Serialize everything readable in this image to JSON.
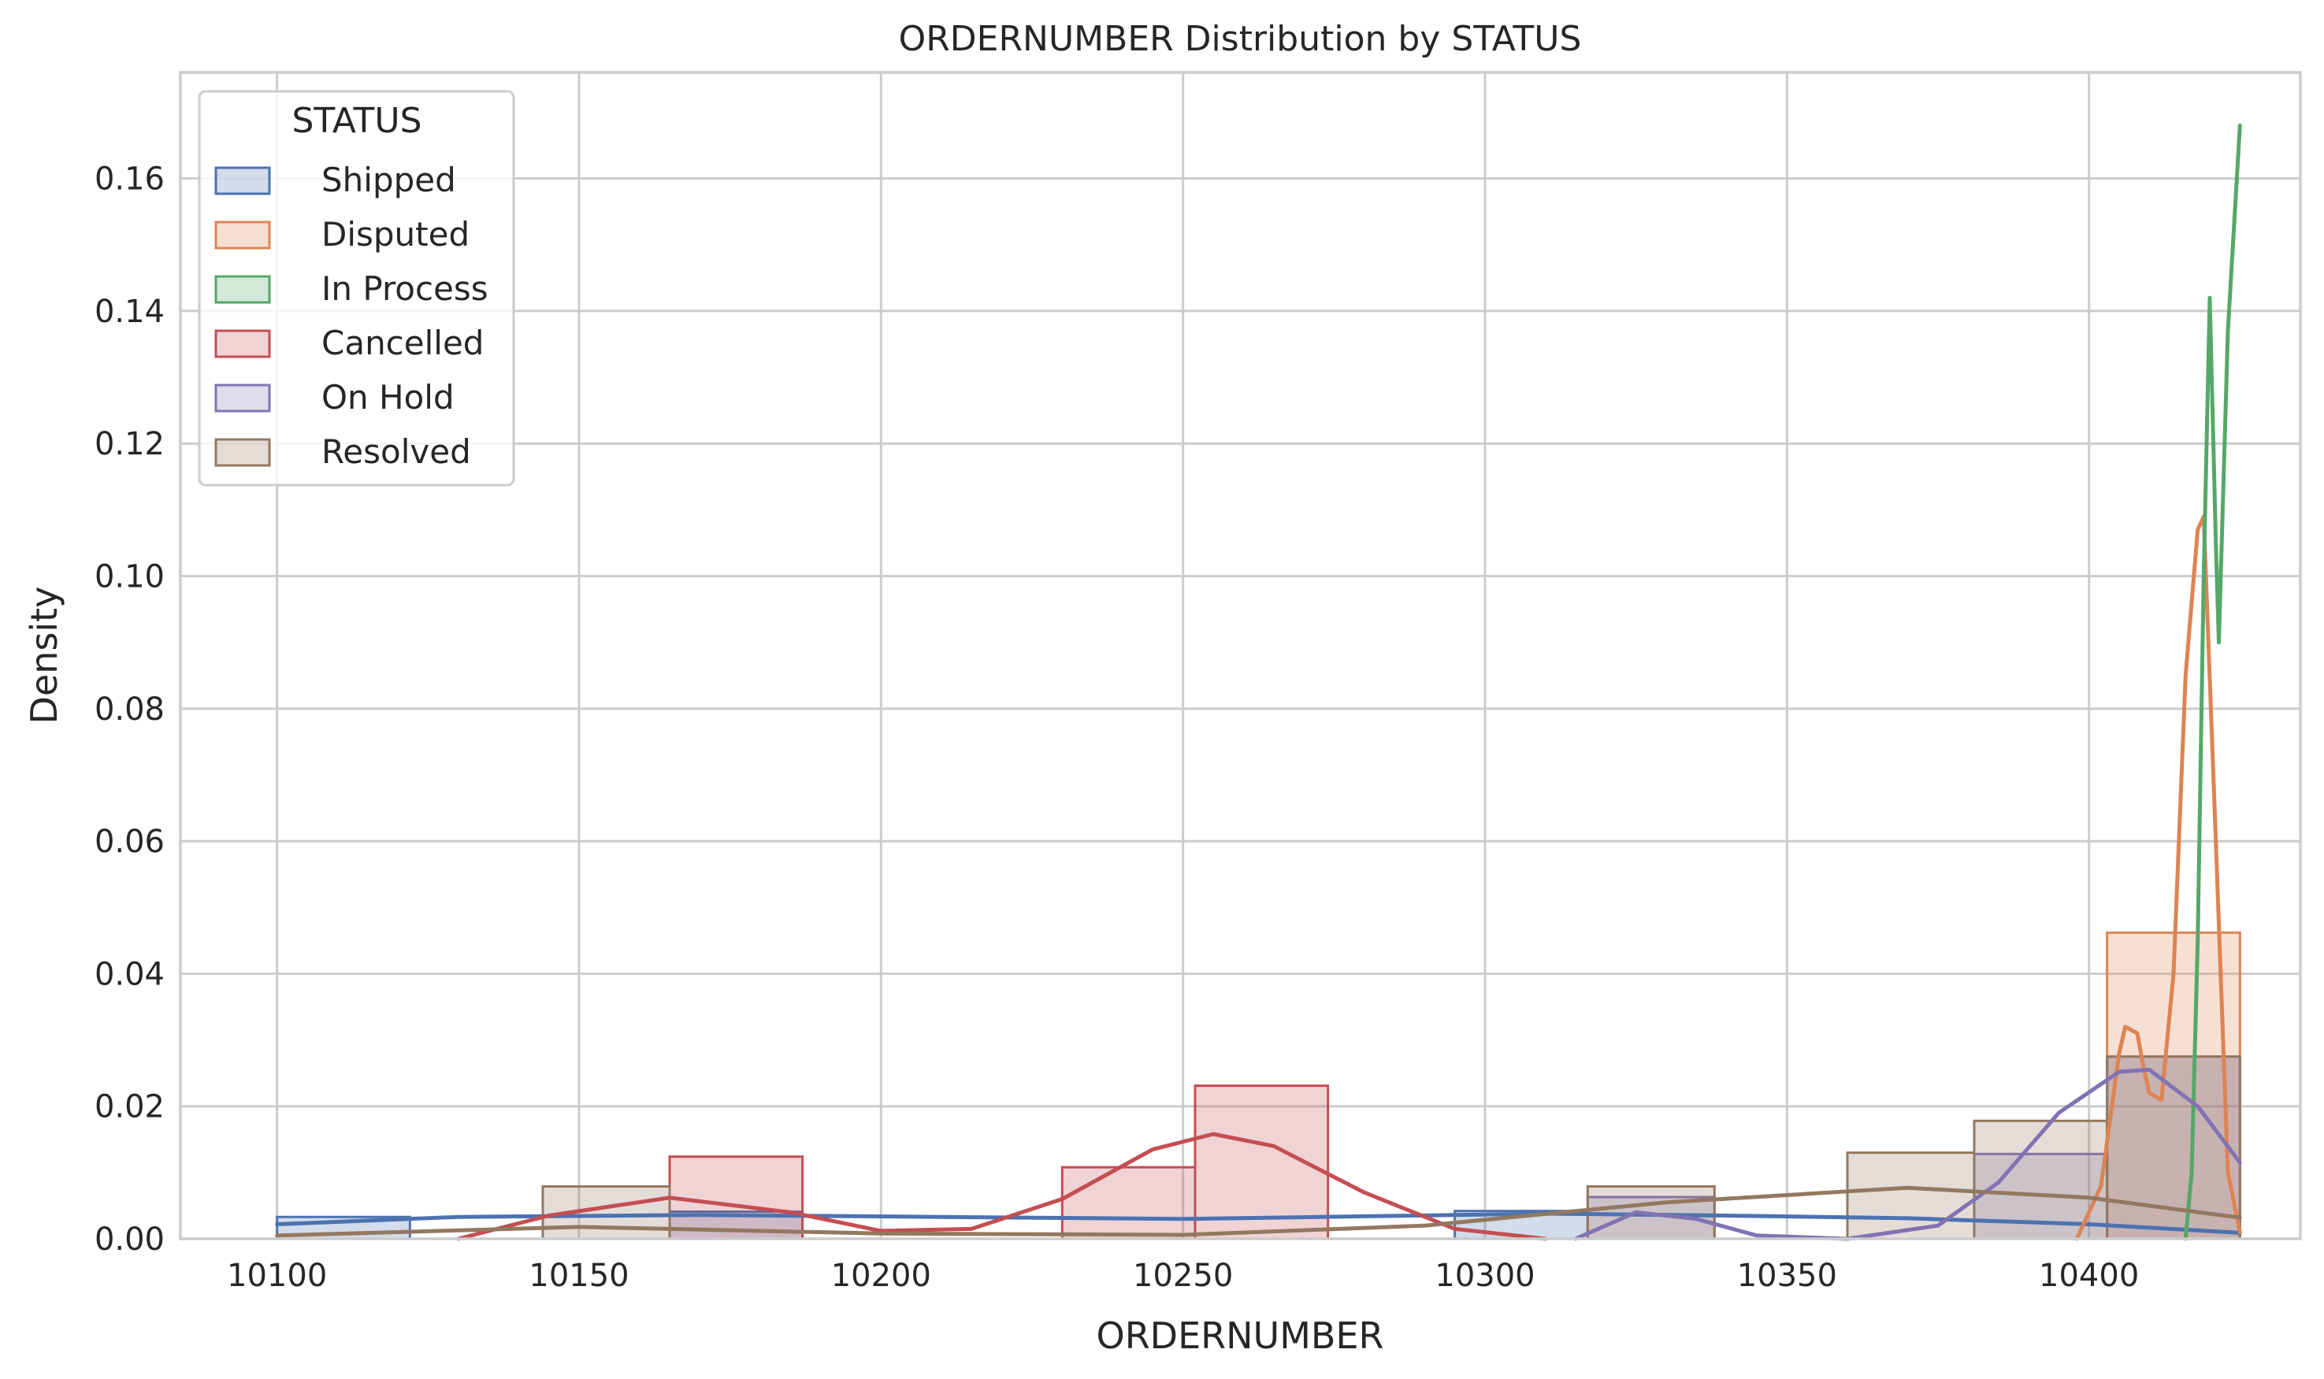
{
  "chart_data": {
    "type": "histogram+kde",
    "title": "ORDERNUMBER Distribution by STATUS",
    "xlabel": "ORDERNUMBER",
    "ylabel": "Density",
    "xlim": [
      10084,
      10435
    ],
    "ylim": [
      0,
      0.176
    ],
    "xticks": [
      10100,
      10150,
      10200,
      10250,
      10300,
      10350,
      10400
    ],
    "xtick_labels": [
      "10100",
      "10150",
      "10200",
      "10250",
      "10300",
      "10350",
      "10400"
    ],
    "yticks": [
      0,
      0.02,
      0.04,
      0.06,
      0.08,
      0.1,
      0.12,
      0.14,
      0.16
    ],
    "ytick_labels": [
      "0.00",
      "0.02",
      "0.04",
      "0.06",
      "0.08",
      "0.10",
      "0.12",
      "0.14",
      "0.16"
    ],
    "grid": true,
    "legend": {
      "title": "STATUS",
      "placement": "top-left"
    },
    "series": [
      {
        "name": "Shipped",
        "color": "#4c72b0",
        "bins": [
          {
            "x0": 10100,
            "x1": 10122,
            "y": 0.0033
          },
          {
            "x0": 10165,
            "x1": 10187,
            "y": 0.0041
          },
          {
            "x0": 10295,
            "x1": 10317,
            "y": 0.0042
          }
        ],
        "kde": [
          [
            10100,
            0.0022
          ],
          [
            10130,
            0.0033
          ],
          [
            10170,
            0.0036
          ],
          [
            10210,
            0.0033
          ],
          [
            10250,
            0.003
          ],
          [
            10280,
            0.0034
          ],
          [
            10310,
            0.0038
          ],
          [
            10340,
            0.0035
          ],
          [
            10370,
            0.0031
          ],
          [
            10400,
            0.0022
          ],
          [
            10425,
            0.0009
          ]
        ]
      },
      {
        "name": "Disputed",
        "color": "#dd8452",
        "bins": [
          {
            "x0": 10403,
            "x1": 10425,
            "y": 0.0462
          }
        ],
        "kde": [
          [
            10398,
            0.0
          ],
          [
            10402,
            0.008
          ],
          [
            10405,
            0.028
          ],
          [
            10406,
            0.032
          ],
          [
            10408,
            0.031
          ],
          [
            10409,
            0.026
          ],
          [
            10410,
            0.022
          ],
          [
            10412,
            0.021
          ],
          [
            10414,
            0.04
          ],
          [
            10416,
            0.085
          ],
          [
            10418,
            0.107
          ],
          [
            10419,
            0.109
          ],
          [
            10421,
            0.06
          ],
          [
            10423,
            0.01
          ],
          [
            10425,
            0.001
          ]
        ]
      },
      {
        "name": "In Process",
        "color": "#55a868",
        "bins": [],
        "kde": [
          [
            10416,
            0.0
          ],
          [
            10417,
            0.01
          ],
          [
            10418,
            0.045
          ],
          [
            10419,
            0.1
          ],
          [
            10420,
            0.142
          ],
          [
            10421,
            0.105
          ],
          [
            10421.5,
            0.09
          ],
          [
            10423,
            0.137
          ],
          [
            10425,
            0.168
          ]
        ]
      },
      {
        "name": "Cancelled",
        "color": "#c44e52",
        "bins": [
          {
            "x0": 10165,
            "x1": 10187,
            "y": 0.0124
          },
          {
            "x0": 10230,
            "x1": 10252,
            "y": 0.0108
          },
          {
            "x0": 10252,
            "x1": 10274,
            "y": 0.0231
          }
        ],
        "kde": [
          [
            10130,
            0.0
          ],
          [
            10145,
            0.0035
          ],
          [
            10165,
            0.0062
          ],
          [
            10185,
            0.004
          ],
          [
            10200,
            0.0012
          ],
          [
            10215,
            0.0015
          ],
          [
            10230,
            0.006
          ],
          [
            10245,
            0.0135
          ],
          [
            10255,
            0.0158
          ],
          [
            10265,
            0.014
          ],
          [
            10280,
            0.007
          ],
          [
            10295,
            0.0015
          ],
          [
            10310,
            0.0
          ]
        ]
      },
      {
        "name": "On Hold",
        "color": "#8172b3",
        "bins": [
          {
            "x0": 10317,
            "x1": 10338,
            "y": 0.0063
          },
          {
            "x0": 10381,
            "x1": 10403,
            "y": 0.0128
          },
          {
            "x0": 10403,
            "x1": 10425,
            "y": 0.0275
          }
        ],
        "kde": [
          [
            10315,
            0.0
          ],
          [
            10325,
            0.004
          ],
          [
            10335,
            0.003
          ],
          [
            10345,
            0.0005
          ],
          [
            10360,
            0.0
          ],
          [
            10375,
            0.002
          ],
          [
            10385,
            0.0085
          ],
          [
            10395,
            0.019
          ],
          [
            10405,
            0.0252
          ],
          [
            10410,
            0.0255
          ],
          [
            10418,
            0.02
          ],
          [
            10425,
            0.0115
          ]
        ]
      },
      {
        "name": "Resolved",
        "color": "#937860",
        "bins": [
          {
            "x0": 10144,
            "x1": 10165,
            "y": 0.0079
          },
          {
            "x0": 10317,
            "x1": 10338,
            "y": 0.0079
          },
          {
            "x0": 10360,
            "x1": 10381,
            "y": 0.013
          },
          {
            "x0": 10381,
            "x1": 10403,
            "y": 0.0178
          },
          {
            "x0": 10403,
            "x1": 10425,
            "y": 0.0275
          }
        ],
        "kde": [
          [
            10100,
            0.0005
          ],
          [
            10150,
            0.0018
          ],
          [
            10200,
            0.0008
          ],
          [
            10250,
            0.0006
          ],
          [
            10290,
            0.002
          ],
          [
            10330,
            0.0055
          ],
          [
            10370,
            0.0077
          ],
          [
            10400,
            0.0062
          ],
          [
            10425,
            0.0032
          ]
        ]
      }
    ]
  }
}
